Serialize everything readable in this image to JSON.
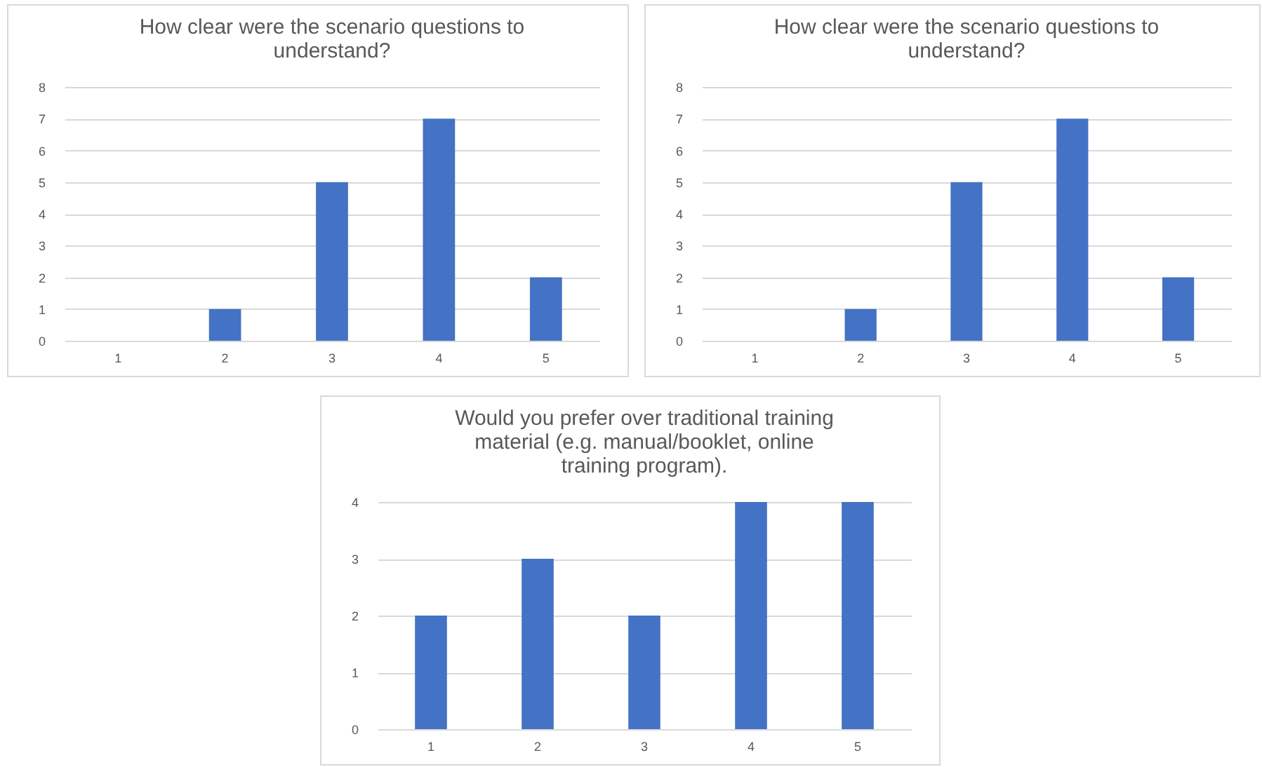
{
  "chart_data": [
    {
      "type": "bar",
      "title": "How clear were the scenario questions to understand?",
      "categories": [
        "1",
        "2",
        "3",
        "4",
        "5"
      ],
      "values": [
        0,
        1,
        5,
        7,
        2
      ],
      "color": "#4472c4",
      "ylim": [
        0,
        8
      ],
      "yticks": [
        0,
        1,
        2,
        3,
        4,
        5,
        6,
        7,
        8
      ],
      "grid": "y"
    },
    {
      "type": "bar",
      "title": "How clear were the scenario questions to understand?",
      "categories": [
        "1",
        "2",
        "3",
        "4",
        "5"
      ],
      "values": [
        0,
        1,
        5,
        7,
        2
      ],
      "color": "#4472c4",
      "ylim": [
        0,
        8
      ],
      "yticks": [
        0,
        1,
        2,
        3,
        4,
        5,
        6,
        7,
        8
      ],
      "grid": "y"
    },
    {
      "type": "bar",
      "title": "Would you prefer over traditional training material (e.g. manual/booklet, online training program).",
      "categories": [
        "1",
        "2",
        "3",
        "4",
        "5"
      ],
      "values": [
        2,
        3,
        2,
        4,
        4
      ],
      "color": "#4472c4",
      "ylim": [
        0,
        4
      ],
      "yticks": [
        0,
        1,
        2,
        3,
        4
      ],
      "grid": "y"
    }
  ]
}
